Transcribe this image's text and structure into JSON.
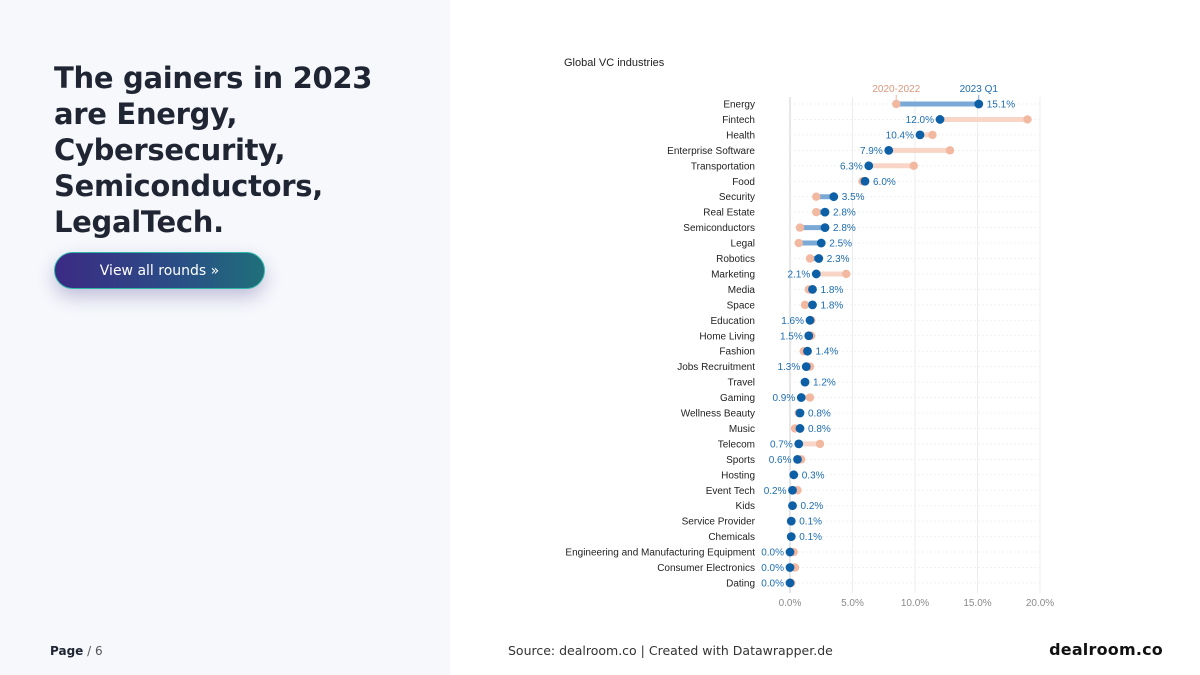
{
  "headline": "The gainers in 2023 are Energy, Cybersecurity, Semiconductors, LegalTech.",
  "cta_label": "View all rounds »",
  "page": {
    "label": "Page",
    "sep": "/",
    "total": "6"
  },
  "source": "Source: dealroom.co | Created with Datawrapper.de",
  "logo": "dealroom.co",
  "colors": {
    "before": "#f2b8a0",
    "after": "#0d5fa6",
    "gain_bar": "#7aa9d6",
    "loss_bar": "#f8d5c6",
    "after_label": "#1d6db0"
  },
  "chart_data": {
    "type": "dumbbell",
    "title": "Global VC industries",
    "series": [
      {
        "name": "2020-2022"
      },
      {
        "name": "2023 Q1"
      }
    ],
    "x_ticks": [
      "0.0%",
      "5.0%",
      "10.0%",
      "15.0%",
      "20.0%"
    ],
    "xlim": [
      0,
      20
    ],
    "rows": [
      {
        "label": "Energy",
        "before": 8.5,
        "after": 15.1,
        "text": "15.1%"
      },
      {
        "label": "Fintech",
        "before": 19.0,
        "after": 12.0,
        "text": "12.0%"
      },
      {
        "label": "Health",
        "before": 11.4,
        "after": 10.4,
        "text": "10.4%"
      },
      {
        "label": "Enterprise Software",
        "before": 12.8,
        "after": 7.9,
        "text": "7.9%"
      },
      {
        "label": "Transportation",
        "before": 9.9,
        "after": 6.3,
        "text": "6.3%"
      },
      {
        "label": "Food",
        "before": 5.8,
        "after": 6.0,
        "text": "6.0%"
      },
      {
        "label": "Security",
        "before": 2.1,
        "after": 3.5,
        "text": "3.5%"
      },
      {
        "label": "Real Estate",
        "before": 2.1,
        "after": 2.8,
        "text": "2.8%"
      },
      {
        "label": "Semiconductors",
        "before": 0.8,
        "after": 2.8,
        "text": "2.8%"
      },
      {
        "label": "Legal",
        "before": 0.7,
        "after": 2.5,
        "text": "2.5%"
      },
      {
        "label": "Robotics",
        "before": 1.6,
        "after": 2.3,
        "text": "2.3%"
      },
      {
        "label": "Marketing",
        "before": 4.5,
        "after": 2.1,
        "text": "2.1%"
      },
      {
        "label": "Media",
        "before": 1.5,
        "after": 1.8,
        "text": "1.8%"
      },
      {
        "label": "Space",
        "before": 1.2,
        "after": 1.8,
        "text": "1.8%"
      },
      {
        "label": "Education",
        "before": 1.7,
        "after": 1.6,
        "text": "1.6%"
      },
      {
        "label": "Home Living",
        "before": 1.7,
        "after": 1.5,
        "text": "1.5%"
      },
      {
        "label": "Fashion",
        "before": 1.1,
        "after": 1.4,
        "text": "1.4%"
      },
      {
        "label": "Jobs Recruitment",
        "before": 1.6,
        "after": 1.3,
        "text": "1.3%"
      },
      {
        "label": "Travel",
        "before": 1.2,
        "after": 1.2,
        "text": "1.2%"
      },
      {
        "label": "Gaming",
        "before": 1.6,
        "after": 0.9,
        "text": "0.9%"
      },
      {
        "label": "Wellness Beauty",
        "before": 0.7,
        "after": 0.8,
        "text": "0.8%"
      },
      {
        "label": "Music",
        "before": 0.4,
        "after": 0.8,
        "text": "0.8%"
      },
      {
        "label": "Telecom",
        "before": 2.4,
        "after": 0.7,
        "text": "0.7%"
      },
      {
        "label": "Sports",
        "before": 0.9,
        "after": 0.6,
        "text": "0.6%"
      },
      {
        "label": "Hosting",
        "before": 0.3,
        "after": 0.3,
        "text": "0.3%"
      },
      {
        "label": "Event Tech",
        "before": 0.6,
        "after": 0.2,
        "text": "0.2%"
      },
      {
        "label": "Kids",
        "before": 0.2,
        "after": 0.2,
        "text": "0.2%"
      },
      {
        "label": "Service Provider",
        "before": 0.1,
        "after": 0.1,
        "text": "0.1%"
      },
      {
        "label": "Chemicals",
        "before": 0.1,
        "after": 0.1,
        "text": "0.1%"
      },
      {
        "label": "Engineering and Manufacturing Equipment",
        "before": 0.3,
        "after": 0.0,
        "text": "0.0%"
      },
      {
        "label": "Consumer Electronics",
        "before": 0.4,
        "after": 0.0,
        "text": "0.0%"
      },
      {
        "label": "Dating",
        "before": 0.1,
        "after": 0.0,
        "text": "0.0%"
      }
    ]
  }
}
